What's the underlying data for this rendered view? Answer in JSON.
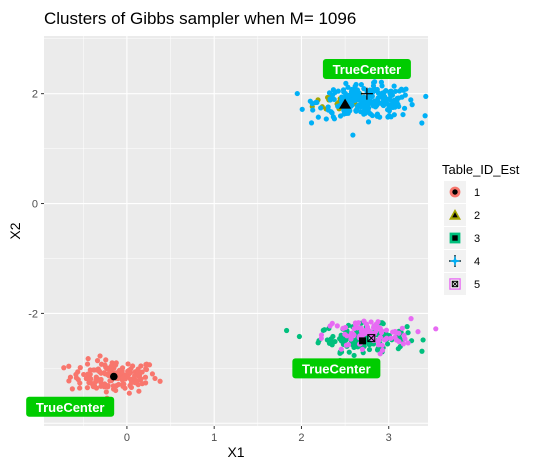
{
  "chart_data": {
    "type": "scatter",
    "title": "Clusters of Gibbs sampler when M= 1096",
    "xlabel": "X1",
    "ylabel": "X2",
    "xlim": [
      -0.95,
      3.45
    ],
    "ylim": [
      -4.05,
      3.05
    ],
    "x_ticks": [
      0,
      1,
      2,
      3
    ],
    "y_ticks": [
      -2,
      0,
      2
    ],
    "x_tick_labels": [
      "0",
      "1",
      "2",
      "3"
    ],
    "y_tick_labels": [
      "-2",
      "0",
      "2"
    ],
    "legend_title": "Table_ID_Est",
    "legend_position": "right",
    "background": "#ebebeb",
    "grid_major_color": "#ffffff",
    "series": [
      {
        "name": "1",
        "color": "#F8766D",
        "center": [
          -0.15,
          -3.15
        ],
        "spread": [
          0.25,
          0.15
        ],
        "count": 150,
        "estimate": [
          -0.15,
          -3.15
        ],
        "marker": "circle"
      },
      {
        "name": "2",
        "color": "#A3A500",
        "center": [
          2.45,
          1.85
        ],
        "spread": [
          0.15,
          0.1
        ],
        "count": 18,
        "estimate": [
          2.5,
          1.8
        ],
        "marker": "triangle"
      },
      {
        "name": "3",
        "color": "#00BF7D",
        "center": [
          2.7,
          -2.45
        ],
        "spread": [
          0.25,
          0.12
        ],
        "count": 140,
        "estimate": [
          2.7,
          -2.5
        ],
        "marker": "square"
      },
      {
        "name": "4",
        "color": "#00B0F6",
        "center": [
          2.75,
          1.85
        ],
        "spread": [
          0.28,
          0.15
        ],
        "count": 230,
        "estimate": [
          2.75,
          2.0
        ],
        "marker": "star"
      },
      {
        "name": "5",
        "color": "#E76BF3",
        "center": [
          2.75,
          -2.4
        ],
        "spread": [
          0.25,
          0.15
        ],
        "count": 90,
        "estimate": [
          2.8,
          -2.45
        ],
        "marker": "box-x"
      }
    ],
    "annotations": [
      {
        "text": "TrueCenter",
        "x": 2.75,
        "y": 2.0,
        "label_x": 2.75,
        "label_y": 2.45
      },
      {
        "text": "TrueCenter",
        "x": -0.15,
        "y": -3.15,
        "label_x": -0.65,
        "label_y": -3.7
      },
      {
        "text": "TrueCenter",
        "x": 2.7,
        "y": -2.5,
        "label_x": 2.4,
        "label_y": -3.0
      }
    ],
    "annotation_fill": "#00cc00",
    "center_marker_color": "#000000"
  }
}
